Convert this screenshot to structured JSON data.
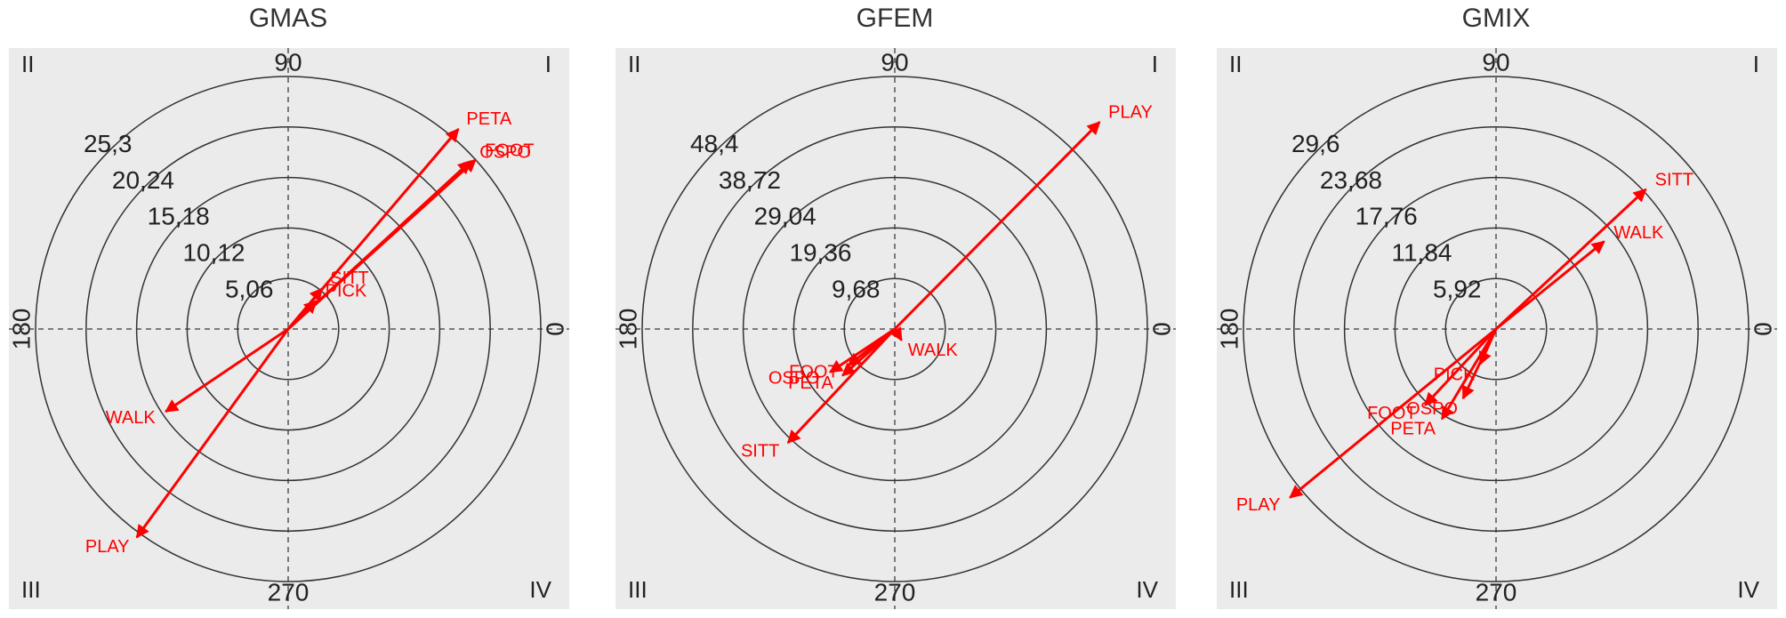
{
  "chart_data": [
    {
      "type": "polar",
      "title": "GMAS",
      "color": "#ff0000",
      "categories": [
        "PETA",
        "OSPO",
        "FOOT",
        "SITT",
        "PICK",
        "WALK",
        "PLAY"
      ],
      "values": [
        26.3,
        24.8,
        25.3,
        5.3,
        4.0,
        14.8,
        25.8
      ],
      "angles": [
        49.6,
        42.6,
        42.1,
        50,
        45,
        214,
        234
      ],
      "rlim": [
        0,
        25.3
      ],
      "rticks": [
        {
          "value": 5.06,
          "label": "5,06"
        },
        {
          "value": 10.12,
          "label": "10,12"
        },
        {
          "value": 15.18,
          "label": "15,18"
        },
        {
          "value": 20.24,
          "label": "20,24"
        },
        {
          "value": 25.3,
          "label": "25,3"
        }
      ],
      "angleticks": [
        0,
        90,
        180,
        270
      ],
      "quadrant_labels": [
        "I",
        "II",
        "III",
        "IV"
      ]
    },
    {
      "type": "polar",
      "title": "GFEM",
      "color": "#ff0000",
      "categories": [
        "PLAY",
        "SITT",
        "OSPO",
        "FOOT",
        "PETA",
        "WALK"
      ],
      "values": [
        55.8,
        29.9,
        14.9,
        11.3,
        13.4,
        2.5
      ],
      "angles": [
        45.3,
        226.8,
        213.7,
        218,
        221.7,
        301
      ],
      "rlim": [
        0,
        48.4
      ],
      "rticks": [
        {
          "value": 9.68,
          "label": "9,68"
        },
        {
          "value": 19.36,
          "label": "19,36"
        },
        {
          "value": 29.04,
          "label": "29,04"
        },
        {
          "value": 38.72,
          "label": "38,72"
        },
        {
          "value": 48.4,
          "label": "48,4"
        }
      ],
      "angleticks": [
        0,
        90,
        180,
        270
      ],
      "quadrant_labels": [
        "I",
        "II",
        "III",
        "IV"
      ]
    },
    {
      "type": "polar",
      "title": "GMIX",
      "color": "#ff0000",
      "categories": [
        "SITT",
        "WALK",
        "PLAY",
        "FOOT",
        "PETA",
        "OSPO",
        "PICK"
      ],
      "values": [
        24.0,
        16.3,
        31.2,
        12.2,
        12.3,
        9.0,
        4.5
      ],
      "angles": [
        43,
        39,
        219.3,
        227,
        239,
        244.6,
        245.7
      ],
      "rlim": [
        0,
        29.6
      ],
      "rticks": [
        {
          "value": 5.92,
          "label": "5,92"
        },
        {
          "value": 11.84,
          "label": "11,84"
        },
        {
          "value": 17.76,
          "label": "17,76"
        },
        {
          "value": 23.68,
          "label": "23,68"
        },
        {
          "value": 29.6,
          "label": "29,6"
        }
      ],
      "angleticks": [
        0,
        90,
        180,
        270
      ],
      "quadrant_labels": [
        "I",
        "II",
        "III",
        "IV"
      ]
    }
  ]
}
